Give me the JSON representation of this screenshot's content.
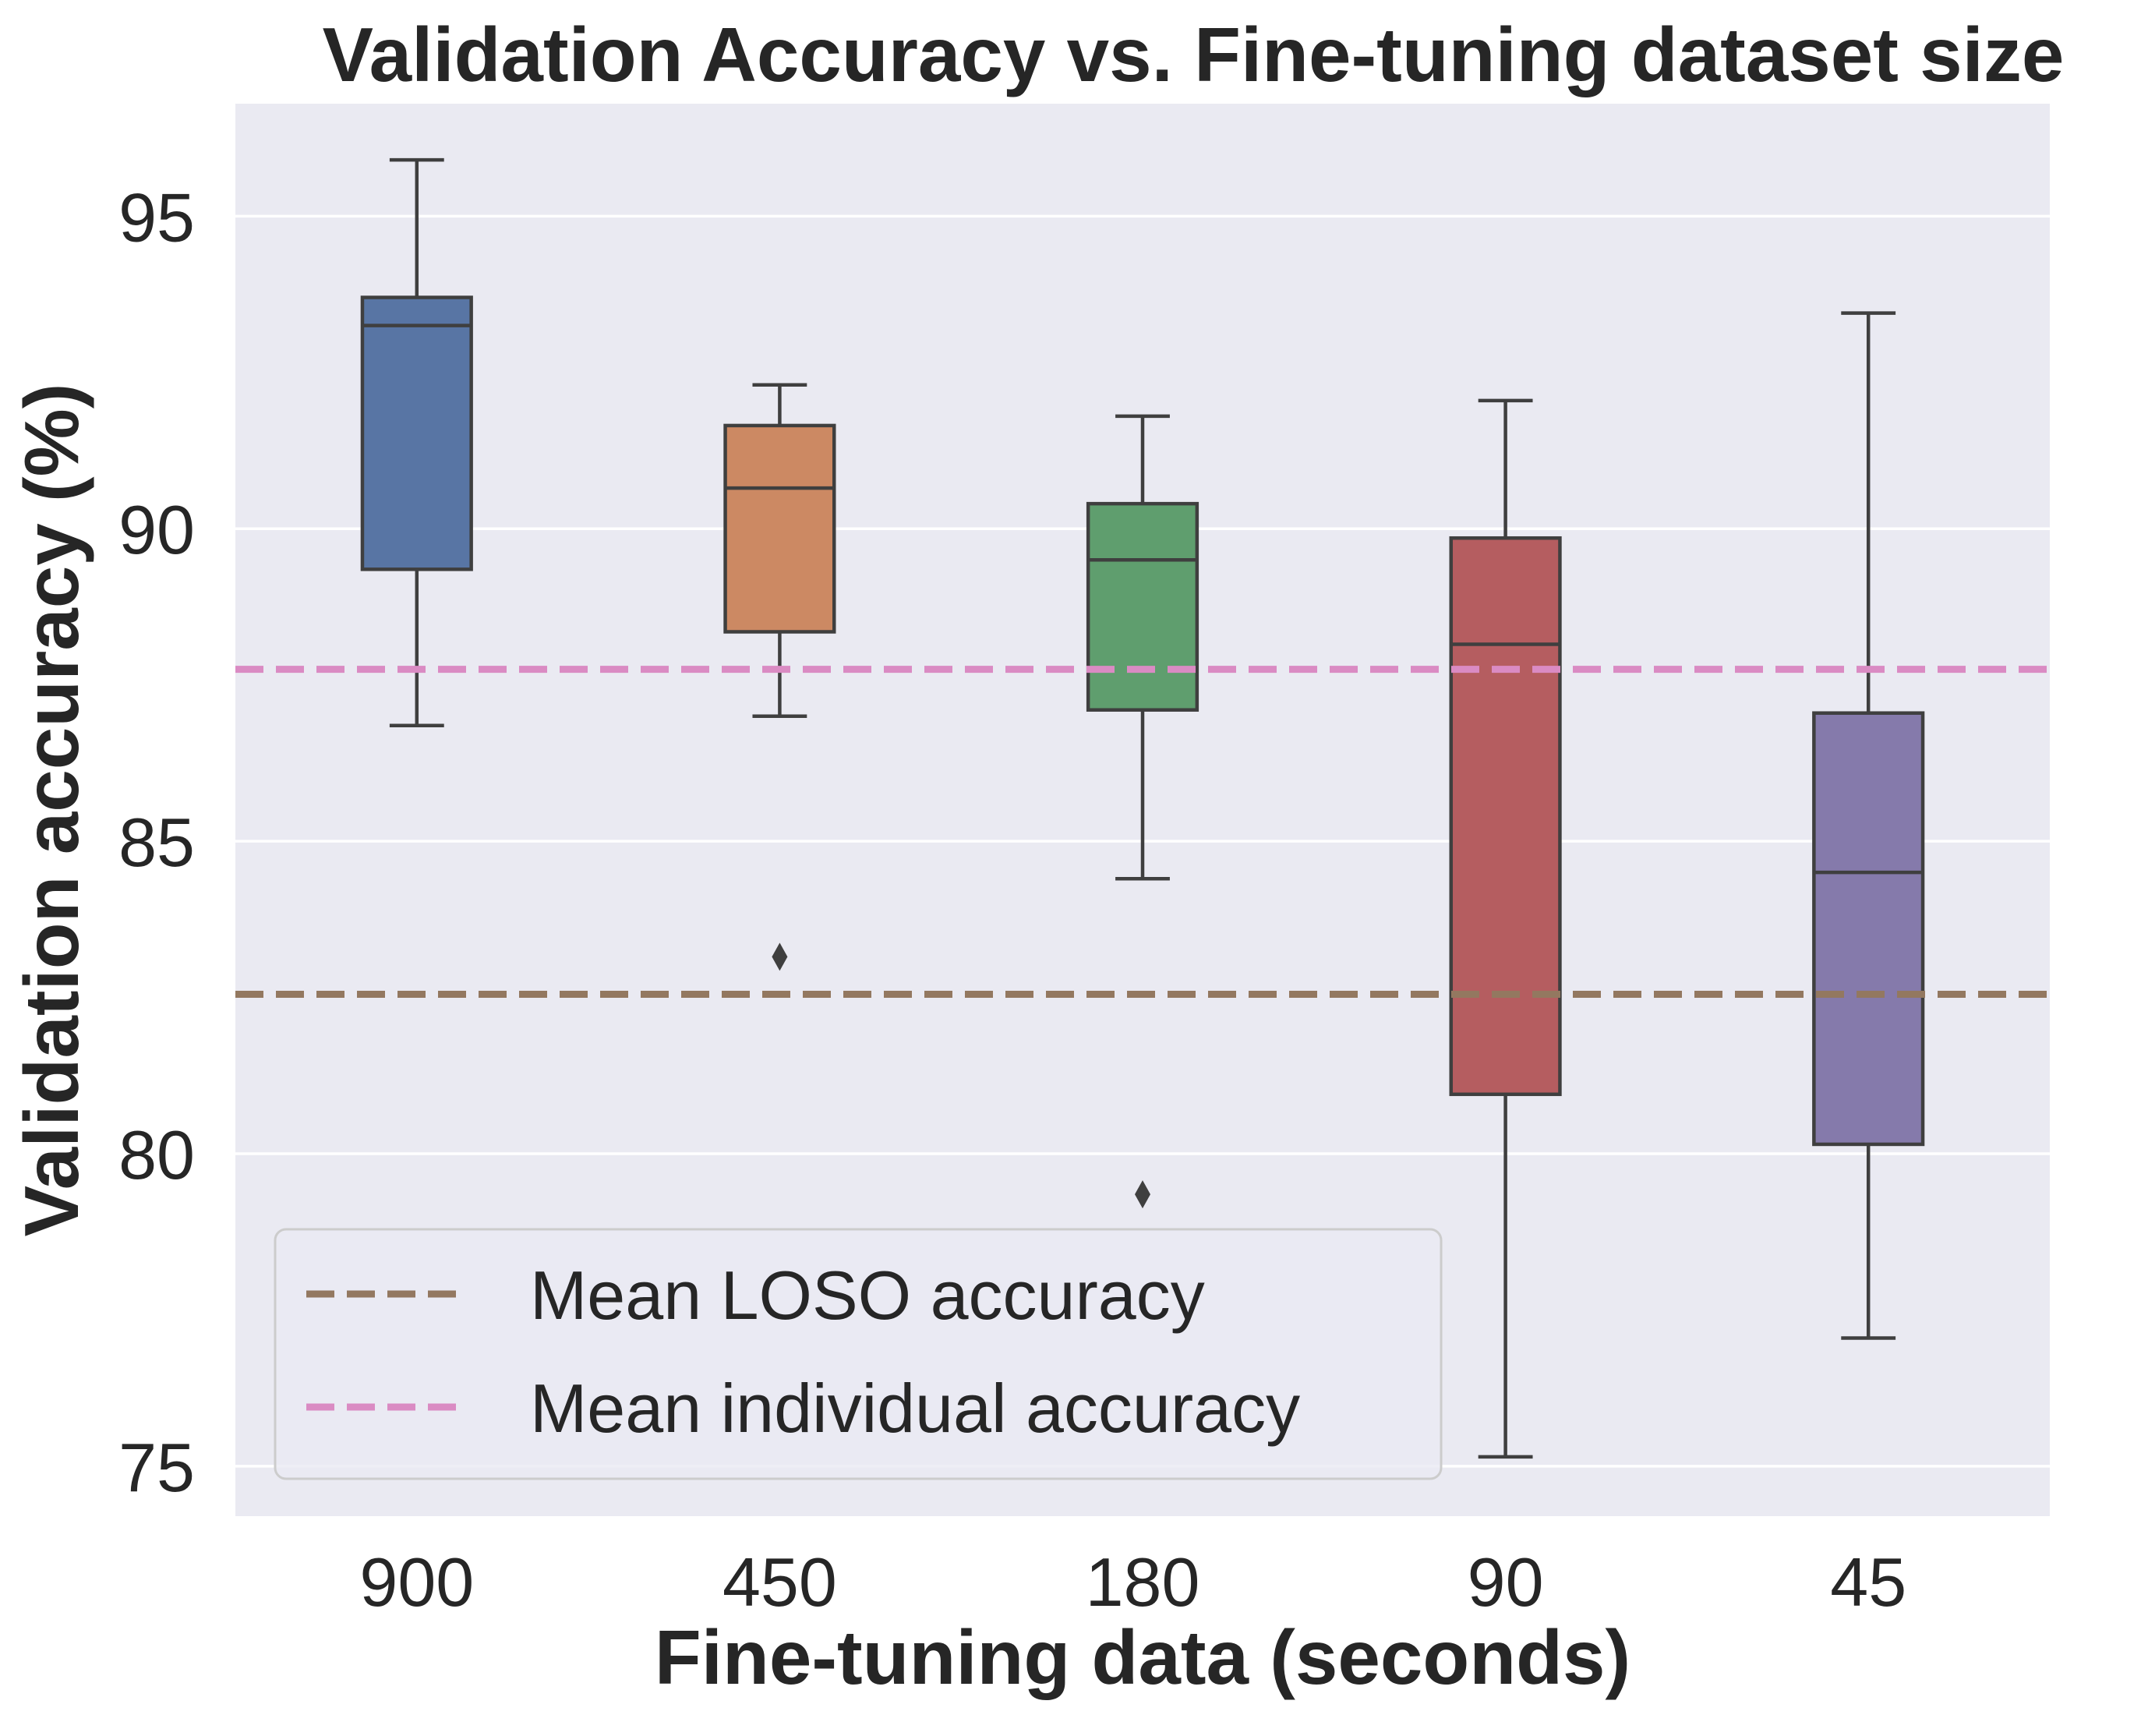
{
  "chart_data": {
    "type": "box",
    "title": "Validation Accuracy vs. Fine-tuning dataset size",
    "xlabel": "Fine-tuning data (seconds)",
    "ylabel": "Validation accuracy (%)",
    "ylim": [
      74.2,
      96.8
    ],
    "yticks": [
      75,
      80,
      85,
      90,
      95
    ],
    "grid": true,
    "categories": [
      "900",
      "450",
      "180",
      "90",
      "45"
    ],
    "boxes": [
      {
        "category": "900",
        "whisker_low": 86.85,
        "q1": 89.35,
        "median": 93.25,
        "q3": 93.7,
        "whisker_high": 95.9,
        "outliers": [],
        "color": "#5875a4"
      },
      {
        "category": "450",
        "whisker_low": 87.0,
        "q1": 88.35,
        "median": 90.65,
        "q3": 91.65,
        "whisker_high": 92.3,
        "outliers": [
          83.15
        ],
        "color": "#cc8963"
      },
      {
        "category": "180",
        "whisker_low": 84.4,
        "q1": 87.1,
        "median": 89.5,
        "q3": 90.4,
        "whisker_high": 91.8,
        "outliers": [
          79.35
        ],
        "color": "#5f9e6e"
      },
      {
        "category": "90",
        "whisker_low": 75.15,
        "q1": 80.95,
        "median": 88.15,
        "q3": 89.85,
        "whisker_high": 92.05,
        "outliers": [],
        "color": "#b55d60"
      },
      {
        "category": "45",
        "whisker_low": 77.05,
        "q1": 80.15,
        "median": 84.5,
        "q3": 87.05,
        "whisker_high": 93.45,
        "outliers": [],
        "color": "#857aab"
      }
    ],
    "reference_lines": [
      {
        "name": "Mean LOSO accuracy",
        "value": 82.55,
        "color": "#937860",
        "style": "dashed"
      },
      {
        "name": "Mean individual accuracy",
        "value": 87.75,
        "color": "#da8bc3",
        "style": "dashed"
      }
    ],
    "legend": {
      "position": "lower-left"
    },
    "colors": {
      "plot_background": "#eaeaf2",
      "grid": "#ffffff",
      "box_edge": "#3f3f3f",
      "text": "#262626"
    }
  }
}
